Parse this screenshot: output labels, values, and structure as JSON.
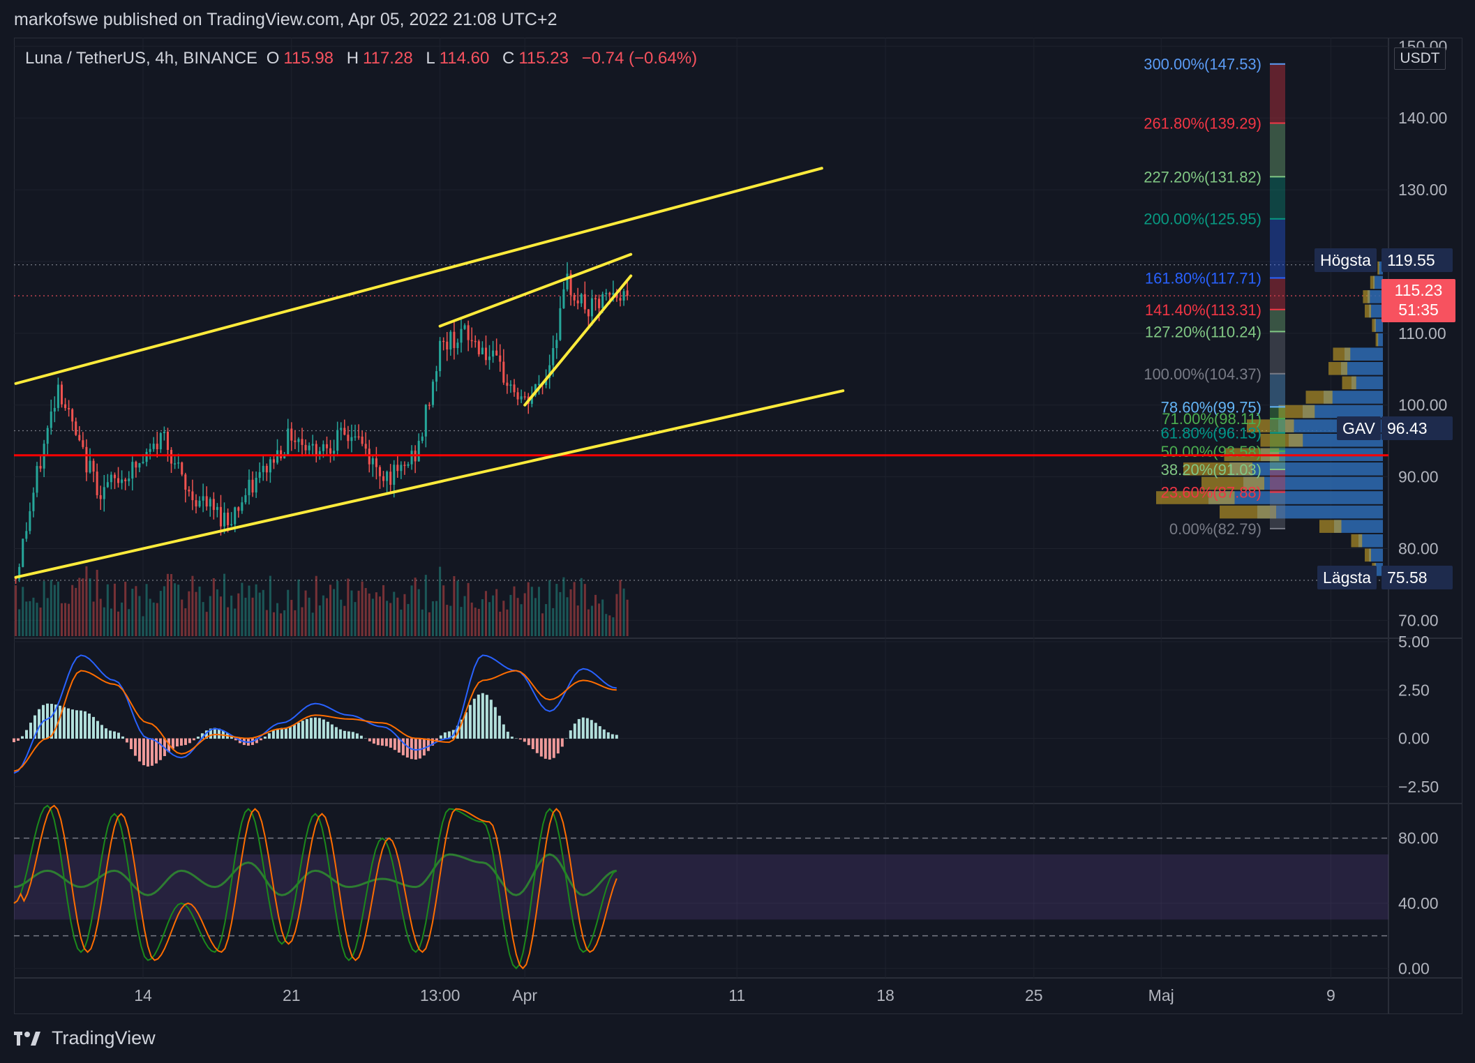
{
  "header": {
    "publisher": "markofswe published on TradingView.com, Apr 05, 2022 21:08 UTC+2"
  },
  "legend": {
    "symbol": "Luna / TetherUS, 4h, BINANCE",
    "o_label": "O",
    "o_value": "115.98",
    "h_label": "H",
    "h_value": "117.28",
    "l_label": "L",
    "l_value": "114.60",
    "c_label": "C",
    "c_value": "115.23",
    "change": "−0.74 (−0.64%)"
  },
  "price_axis": {
    "currency": "USDT",
    "ticks": [
      "150.00",
      "140.00",
      "130.00",
      "120.00",
      "110.00",
      "100.00",
      "90.00",
      "80.00",
      "70.00"
    ],
    "tick_values": [
      150,
      140,
      130,
      120,
      110,
      100,
      90,
      80,
      70
    ]
  },
  "macd_axis": {
    "ticks": [
      "5.00",
      "2.50",
      "0.00",
      "−2.50"
    ],
    "tick_values": [
      5,
      2.5,
      0,
      -2.5
    ]
  },
  "stoch_axis": {
    "ticks": [
      "80.00",
      "40.00",
      "0.00"
    ],
    "tick_values": [
      80,
      40,
      0
    ]
  },
  "time_axis": {
    "ticks": [
      "14",
      "21",
      "13:00",
      "Apr",
      "11",
      "18",
      "25",
      "Maj",
      "9"
    ]
  },
  "markers": {
    "high_label": "Högsta",
    "high_value": "119.55",
    "current_value": "115.23",
    "countdown": "51:35",
    "gav_label": "GAV",
    "gav_value": "96.43",
    "low_label": "Lägsta",
    "low_value": "75.58"
  },
  "fib_levels": [
    {
      "label": "300.00%(147.53)",
      "value": 147.53,
      "color": "#5b9cf6"
    },
    {
      "label": "261.80%(139.29)",
      "value": 139.29,
      "color": "#f23645"
    },
    {
      "label": "227.20%(131.82)",
      "value": 131.82,
      "color": "#81c784"
    },
    {
      "label": "200.00%(125.95)",
      "value": 125.95,
      "color": "#089981"
    },
    {
      "label": "161.80%(117.71)",
      "value": 117.71,
      "color": "#2962ff"
    },
    {
      "label": "141.40%(113.31)",
      "value": 113.31,
      "color": "#f23645"
    },
    {
      "label": "127.20%(110.24)",
      "value": 110.24,
      "color": "#81c784"
    },
    {
      "label": "100.00%(104.37)",
      "value": 104.37,
      "color": "#787b86"
    },
    {
      "label": "78.60%(99.75)",
      "value": 99.75,
      "color": "#64b5f6"
    },
    {
      "label": "71.00%(98.11)",
      "value": 98.11,
      "color": "#4caf50"
    },
    {
      "label": "61.80%(96.13)",
      "value": 96.13,
      "color": "#009688"
    },
    {
      "label": "50.00%(93.58)",
      "value": 93.58,
      "color": "#4caf50"
    },
    {
      "label": "38.20%(91.03)",
      "value": 91.03,
      "color": "#81c784"
    },
    {
      "label": "23.60%(87.88)",
      "value": 87.88,
      "color": "#f23645"
    },
    {
      "label": "0.00%(82.79)",
      "value": 82.79,
      "color": "#787b86"
    }
  ],
  "footer": {
    "brand": "TradingView"
  },
  "colors": {
    "up": "#26a69a",
    "down": "#ef5350",
    "trendline": "#ffeb3b",
    "support": "#ff0000",
    "macd": "#2962ff",
    "signal": "#ff6d00"
  },
  "chart_data": [
    {
      "type": "candlestick",
      "title": "Luna / TetherUS, 4h, BINANCE",
      "ylim": [
        68,
        151
      ],
      "x_ticks": [
        "14",
        "21",
        "13:00",
        "Apr",
        "11",
        "18",
        "25",
        "Maj",
        "9"
      ],
      "waypoints": [
        {
          "t": "Mar 08",
          "price": 76
        },
        {
          "t": "Mar 09",
          "price": 90
        },
        {
          "t": "Mar 10",
          "price": 103
        },
        {
          "t": "Mar 11",
          "price": 94
        },
        {
          "t": "Mar 12",
          "price": 88
        },
        {
          "t": "Mar 14",
          "price": 92
        },
        {
          "t": "Mar 15",
          "price": 96
        },
        {
          "t": "Mar 16",
          "price": 88
        },
        {
          "t": "Mar 18",
          "price": 84
        },
        {
          "t": "Mar 20",
          "price": 92
        },
        {
          "t": "Mar 21",
          "price": 96
        },
        {
          "t": "Mar 22",
          "price": 94
        },
        {
          "t": "Mar 24",
          "price": 96
        },
        {
          "t": "Mar 25",
          "price": 91
        },
        {
          "t": "Mar 26",
          "price": 90
        },
        {
          "t": "Mar 27",
          "price": 94
        },
        {
          "t": "Mar 28",
          "price": 108
        },
        {
          "t": "Mar 29",
          "price": 110
        },
        {
          "t": "Mar 30",
          "price": 108
        },
        {
          "t": "Apr 01",
          "price": 100
        },
        {
          "t": "Apr 02",
          "price": 104
        },
        {
          "t": "Apr 03",
          "price": 117
        },
        {
          "t": "Apr 04",
          "price": 113
        },
        {
          "t": "Apr 05",
          "price": 115
        }
      ],
      "last": {
        "open": 115.98,
        "high": 117.28,
        "low": 114.6,
        "close": 115.23
      },
      "horizontal_line": 93,
      "trendlines": [
        {
          "from": [
            "Mar 08",
            103
          ],
          "to": [
            "Apr 15",
            133
          ]
        },
        {
          "from": [
            "Mar 08",
            76
          ],
          "to": [
            "Apr 16",
            102
          ]
        },
        {
          "from": [
            "Mar 28",
            111
          ],
          "to": [
            "Apr 06",
            121
          ]
        },
        {
          "from": [
            "Apr 01",
            100
          ],
          "to": [
            "Apr 06",
            118
          ]
        }
      ]
    },
    {
      "type": "line",
      "title": "MACD",
      "ylim": [
        -3.3,
        5
      ],
      "series": [
        {
          "values": [
            -1.8,
            1,
            4.3,
            3,
            0,
            -1,
            0.5,
            -0.2,
            0.8,
            1.8,
            1.2,
            0.6,
            -0.6,
            0,
            4.3,
            3.5,
            1.4,
            3.6,
            2.6
          ]
        },
        {
          "values": [
            -1.7,
            0,
            3.5,
            2.8,
            0.8,
            -0.8,
            0.2,
            0,
            0.5,
            1.2,
            1,
            0.8,
            0,
            -0.2,
            3,
            3.5,
            2,
            3,
            2.5
          ]
        }
      ]
    },
    {
      "type": "line",
      "title": "Stoch RSI",
      "ylim": [
        -5,
        100
      ],
      "series": [
        {
          "values": [
            40,
            100,
            10,
            95,
            5,
            40,
            10,
            98,
            15,
            95,
            5,
            80,
            10,
            98,
            90,
            0,
            98,
            10,
            60
          ]
        },
        {
          "values": [
            50,
            60,
            50,
            60,
            45,
            60,
            50,
            65,
            45,
            60,
            50,
            55,
            50,
            70,
            65,
            45,
            70,
            45,
            60
          ]
        }
      ]
    }
  ]
}
